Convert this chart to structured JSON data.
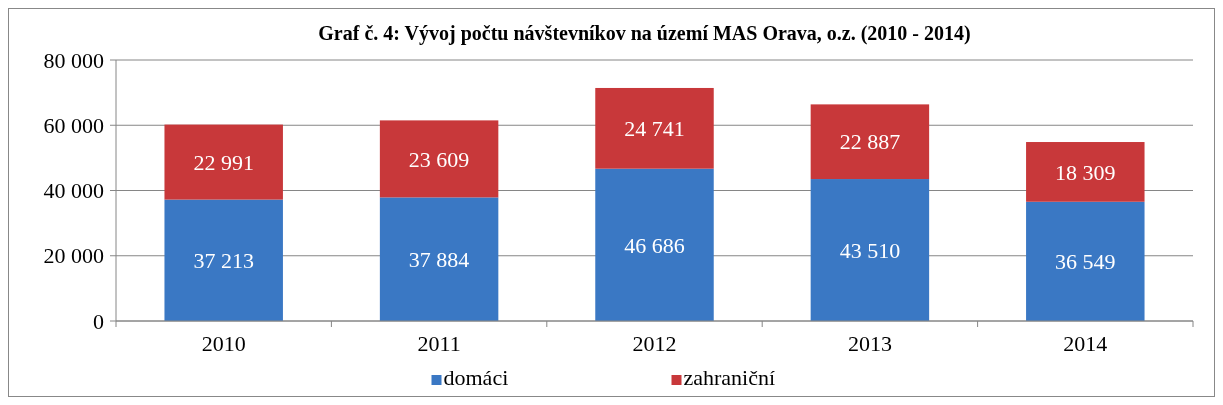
{
  "chart_data": {
    "type": "bar",
    "title": "Graf č. 4: Vývoj počtu návštevníkov na území MAS Orava, o.z. (2010 - 2014)",
    "categories": [
      "2010",
      "2011",
      "2012",
      "2013",
      "2014"
    ],
    "stacked": true,
    "series": [
      {
        "name": "domáci",
        "color": "#3a78c4",
        "values": [
          37213,
          37884,
          46686,
          43510,
          36549
        ],
        "value_labels": [
          "37 213",
          "37 884",
          "46 686",
          "43 510",
          "36 549"
        ]
      },
      {
        "name": "zahraniční",
        "color": "#c8383a",
        "values": [
          22991,
          23609,
          24741,
          22887,
          18309
        ],
        "value_labels": [
          "22 991",
          "23 609",
          "24 741",
          "22 887",
          "18 309"
        ]
      }
    ],
    "ylim": [
      0,
      80000
    ],
    "yticks": [
      {
        "value": 0,
        "label": "0"
      },
      {
        "value": 20000,
        "label": "20 000"
      },
      {
        "value": 40000,
        "label": "40 000"
      },
      {
        "value": 60000,
        "label": "60 000"
      },
      {
        "value": 80000,
        "label": "80 000"
      }
    ],
    "grid": "y",
    "legend": "bottom"
  }
}
